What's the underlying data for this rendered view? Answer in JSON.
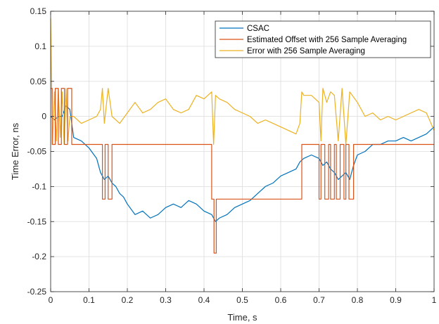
{
  "chart_data": {
    "type": "line",
    "xlabel": "Time, s",
    "ylabel": "Time Error, ns",
    "xlim": [
      0,
      1
    ],
    "ylim": [
      -0.25,
      0.15
    ],
    "xticks": [
      0,
      0.1,
      0.2,
      0.3,
      0.4,
      0.5,
      0.6,
      0.7,
      0.8,
      0.9,
      1
    ],
    "xtick_labels": [
      "0",
      "0.1",
      "0.2",
      "0.3",
      "0.4",
      "0.5",
      "0.6",
      "0.7",
      "0.8",
      "0.9",
      "1"
    ],
    "yticks": [
      0.15,
      0.1,
      0.05,
      0,
      -0.05,
      -0.1,
      -0.15,
      -0.2,
      -0.25
    ],
    "ytick_labels": [
      "0.15",
      "0.1",
      "0.05",
      "0",
      "-0.05",
      "-0.1",
      "-0.15",
      "-0.2",
      "-0.25"
    ],
    "grid": true,
    "legend_position": "top-right",
    "series": [
      {
        "name": "CSAC",
        "color": "#0072BD",
        "x": [
          0,
          0.01,
          0.02,
          0.03,
          0.04,
          0.05,
          0.06,
          0.08,
          0.1,
          0.12,
          0.13,
          0.14,
          0.15,
          0.16,
          0.17,
          0.18,
          0.19,
          0.2,
          0.22,
          0.24,
          0.26,
          0.28,
          0.3,
          0.32,
          0.34,
          0.36,
          0.38,
          0.4,
          0.42,
          0.43,
          0.44,
          0.46,
          0.48,
          0.5,
          0.52,
          0.54,
          0.56,
          0.58,
          0.6,
          0.62,
          0.64,
          0.65,
          0.66,
          0.68,
          0.7,
          0.71,
          0.72,
          0.73,
          0.74,
          0.75,
          0.76,
          0.77,
          0.78,
          0.79,
          0.8,
          0.82,
          0.84,
          0.86,
          0.88,
          0.9,
          0.92,
          0.94,
          0.96,
          0.98,
          1.0
        ],
        "y": [
          0.0,
          -0.005,
          0.0,
          0.0,
          0.015,
          0.01,
          -0.03,
          -0.035,
          -0.045,
          -0.06,
          -0.08,
          -0.09,
          -0.085,
          -0.095,
          -0.1,
          -0.11,
          -0.115,
          -0.125,
          -0.14,
          -0.135,
          -0.145,
          -0.14,
          -0.13,
          -0.125,
          -0.13,
          -0.12,
          -0.125,
          -0.135,
          -0.14,
          -0.15,
          -0.145,
          -0.14,
          -0.13,
          -0.125,
          -0.12,
          -0.11,
          -0.1,
          -0.095,
          -0.085,
          -0.08,
          -0.075,
          -0.065,
          -0.06,
          -0.055,
          -0.06,
          -0.07,
          -0.065,
          -0.075,
          -0.08,
          -0.09,
          -0.085,
          -0.08,
          -0.09,
          -0.07,
          -0.055,
          -0.05,
          -0.04,
          -0.04,
          -0.035,
          -0.035,
          -0.03,
          -0.035,
          -0.03,
          -0.025,
          -0.015
        ]
      },
      {
        "name": "Estimated Offset with 256 Sample Averaging",
        "color": "#D95319",
        "x": [
          0,
          0.004,
          0.004,
          0.012,
          0.012,
          0.02,
          0.02,
          0.028,
          0.028,
          0.036,
          0.036,
          0.044,
          0.044,
          0.055,
          0.055,
          0.135,
          0.135,
          0.142,
          0.142,
          0.15,
          0.15,
          0.16,
          0.16,
          0.42,
          0.42,
          0.426,
          0.426,
          0.432,
          0.432,
          0.655,
          0.655,
          0.7,
          0.7,
          0.705,
          0.705,
          0.715,
          0.715,
          0.725,
          0.725,
          0.73,
          0.73,
          0.74,
          0.74,
          0.745,
          0.745,
          0.755,
          0.755,
          0.765,
          0.765,
          0.77,
          0.77,
          0.778,
          0.778,
          0.79,
          0.79,
          1.0
        ],
        "y": [
          0.04,
          0.04,
          -0.04,
          -0.04,
          0.04,
          0.04,
          -0.04,
          -0.04,
          0.04,
          0.04,
          -0.04,
          -0.04,
          0.04,
          0.04,
          -0.04,
          -0.04,
          -0.118,
          -0.118,
          -0.04,
          -0.04,
          -0.118,
          -0.118,
          -0.04,
          -0.04,
          -0.118,
          -0.118,
          -0.195,
          -0.195,
          -0.118,
          -0.118,
          -0.04,
          -0.04,
          -0.118,
          -0.118,
          -0.04,
          -0.04,
          -0.118,
          -0.118,
          -0.04,
          -0.04,
          -0.118,
          -0.118,
          -0.04,
          -0.04,
          -0.118,
          -0.118,
          -0.04,
          -0.04,
          -0.118,
          -0.118,
          -0.04,
          -0.04,
          -0.118,
          -0.118,
          -0.04,
          -0.04
        ]
      },
      {
        "name": "Error with 256 Sample Averaging",
        "color": "#EDB120",
        "x": [
          0,
          0.005,
          0.01,
          0.015,
          0.02,
          0.025,
          0.03,
          0.035,
          0.04,
          0.045,
          0.05,
          0.06,
          0.08,
          0.1,
          0.12,
          0.13,
          0.135,
          0.14,
          0.15,
          0.16,
          0.18,
          0.2,
          0.22,
          0.24,
          0.26,
          0.28,
          0.3,
          0.32,
          0.34,
          0.36,
          0.38,
          0.4,
          0.42,
          0.425,
          0.43,
          0.44,
          0.46,
          0.48,
          0.5,
          0.52,
          0.54,
          0.56,
          0.58,
          0.6,
          0.62,
          0.64,
          0.65,
          0.655,
          0.66,
          0.68,
          0.7,
          0.705,
          0.71,
          0.72,
          0.73,
          0.74,
          0.75,
          0.76,
          0.77,
          0.78,
          0.8,
          0.82,
          0.84,
          0.86,
          0.88,
          0.9,
          0.92,
          0.94,
          0.96,
          0.98,
          1.0
        ],
        "y": [
          0.14,
          -0.04,
          0.035,
          -0.035,
          0.04,
          -0.03,
          0.035,
          -0.04,
          0.04,
          -0.035,
          0.0,
          0.0,
          -0.01,
          -0.005,
          0.0,
          0.01,
          0.04,
          -0.01,
          0.04,
          0.0,
          -0.01,
          0.005,
          0.02,
          0.005,
          0.01,
          0.02,
          0.025,
          0.01,
          0.005,
          0.01,
          0.03,
          0.025,
          0.035,
          -0.04,
          0.03,
          0.025,
          0.02,
          0.01,
          0.005,
          0.0,
          -0.01,
          -0.005,
          -0.01,
          -0.015,
          -0.02,
          -0.025,
          -0.01,
          0.035,
          0.03,
          0.03,
          0.02,
          -0.035,
          0.04,
          0.02,
          0.035,
          0.03,
          -0.035,
          0.04,
          -0.04,
          0.035,
          0.02,
          0.0,
          0.005,
          -0.005,
          0.0,
          -0.005,
          0.0,
          0.005,
          0.01,
          0.005,
          -0.02
        ]
      }
    ]
  }
}
